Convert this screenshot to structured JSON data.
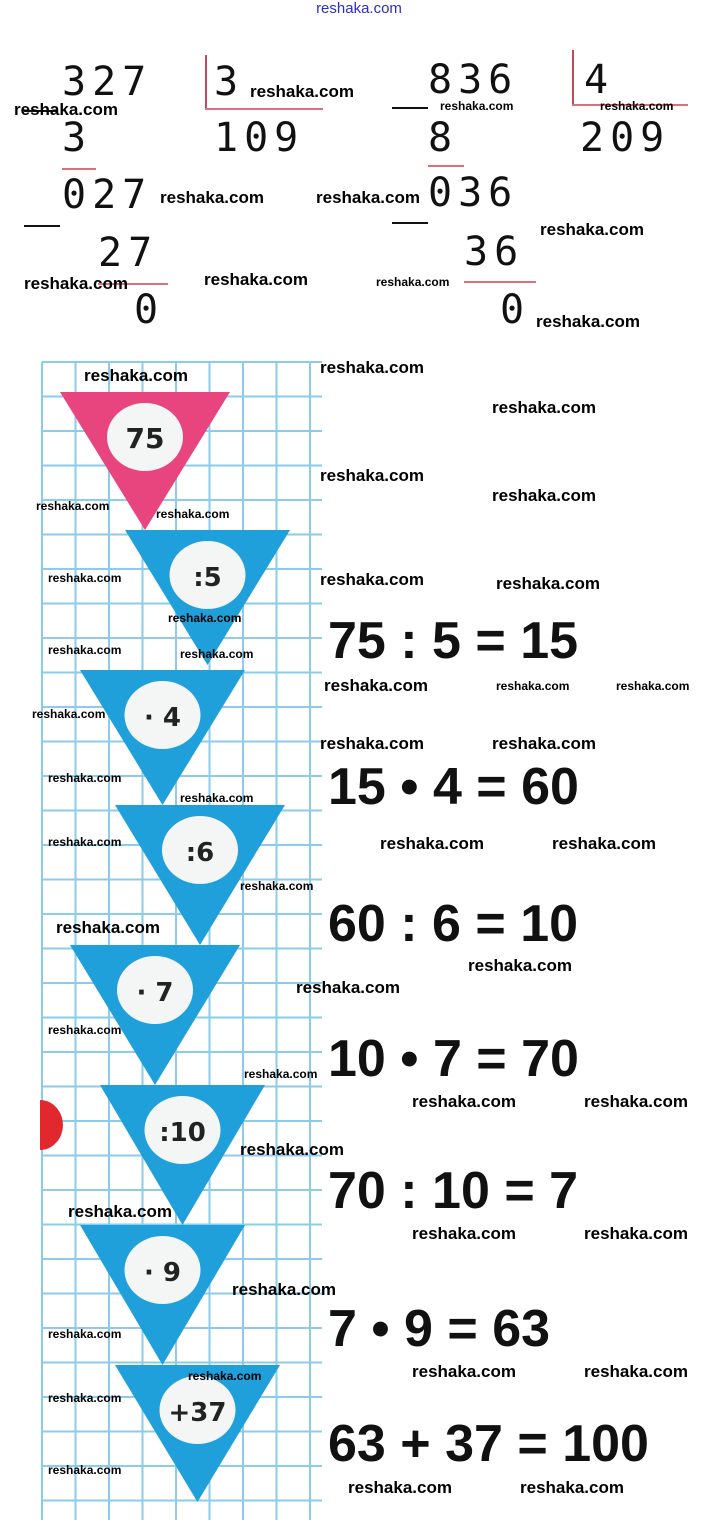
{
  "header": {
    "site": "reshaka.com"
  },
  "watermark": "reshaka.com",
  "division_1": {
    "dividend": "327",
    "divisor": "3",
    "quotient": "109",
    "step1_sub": "3",
    "step1_rem": "027",
    "step2_sub": "27",
    "remainder": "0"
  },
  "division_2": {
    "dividend": "836",
    "divisor": "4",
    "quotient": "209",
    "step1_sub": "8",
    "step1_rem": "036",
    "step2_sub": "36",
    "remainder": "0"
  },
  "chain": {
    "start": "75",
    "start_color": "#e8457f",
    "step_color": "#1fa0db",
    "grid_color": "#8ccbea",
    "steps": [
      ":5",
      "· 4",
      ":6",
      "· 7",
      ":10",
      "· 9",
      "+37"
    ]
  },
  "equations": [
    "75 : 5 = 15",
    "15 • 4 = 60",
    "60 : 6 = 10",
    "10 • 7 = 70",
    "70 : 10 = 7",
    "7 • 9 = 63",
    "63 + 37 = 100"
  ]
}
